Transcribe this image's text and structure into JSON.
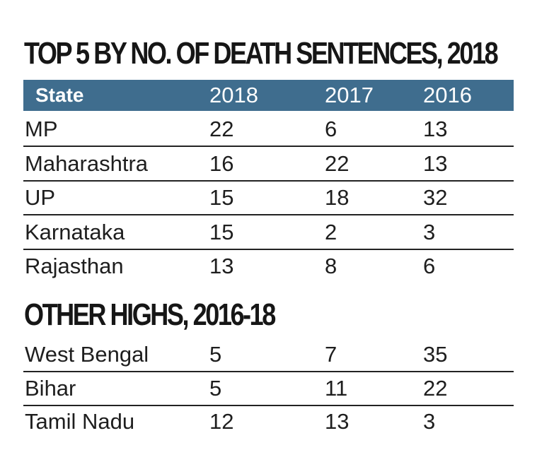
{
  "chart_data": [
    {
      "type": "table",
      "title": "TOP 5 BY NO. OF DEATH SENTENCES, 2018",
      "columns": [
        "State",
        "2018",
        "2017",
        "2016"
      ],
      "rows": [
        [
          "MP",
          "22",
          "6",
          "13"
        ],
        [
          "Maharashtra",
          "16",
          "22",
          "13"
        ],
        [
          "UP",
          "15",
          "18",
          "32"
        ],
        [
          "Karnataka",
          "15",
          "2",
          "3"
        ],
        [
          "Rajasthan",
          "13",
          "8",
          "6"
        ]
      ]
    },
    {
      "type": "table",
      "title": "OTHER HIGHS, 2016-18",
      "columns": [
        "State",
        "2018",
        "2017",
        "2016"
      ],
      "rows": [
        [
          "West Bengal",
          "5",
          "7",
          "35"
        ],
        [
          "Bihar",
          "5",
          "11",
          "22"
        ],
        [
          "Tamil Nadu",
          "12",
          "13",
          "3"
        ]
      ]
    }
  ]
}
